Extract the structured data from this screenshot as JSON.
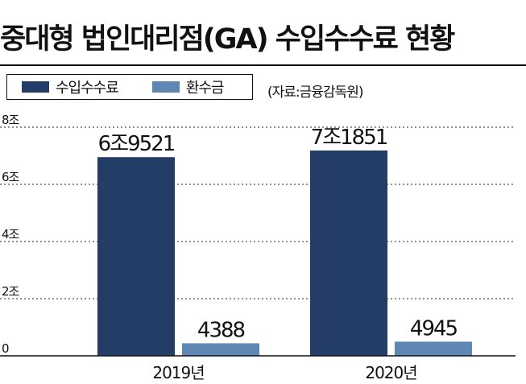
{
  "chart_data": {
    "type": "bar",
    "title": "중대형 법인대리점(GA) 수입수수료 현황",
    "source": "(자료:금융감독원)",
    "categories": [
      "2019년",
      "2020년"
    ],
    "series": [
      {
        "name": "수입수수료",
        "values": [
          69521,
          71851
        ],
        "labels": [
          "6조9521",
          "7조1851"
        ],
        "color": "#243d66"
      },
      {
        "name": "환수금",
        "values": [
          4388,
          4945
        ],
        "labels": [
          "4388",
          "4945"
        ],
        "color": "#5f87b4"
      }
    ],
    "ylim": [
      0,
      80000
    ],
    "yticks": [
      0,
      20000,
      40000,
      60000,
      80000
    ],
    "ytick_labels": [
      "0",
      "2조",
      "4조",
      "6조",
      "8조"
    ],
    "grid": true,
    "legend_position": "top-left"
  }
}
